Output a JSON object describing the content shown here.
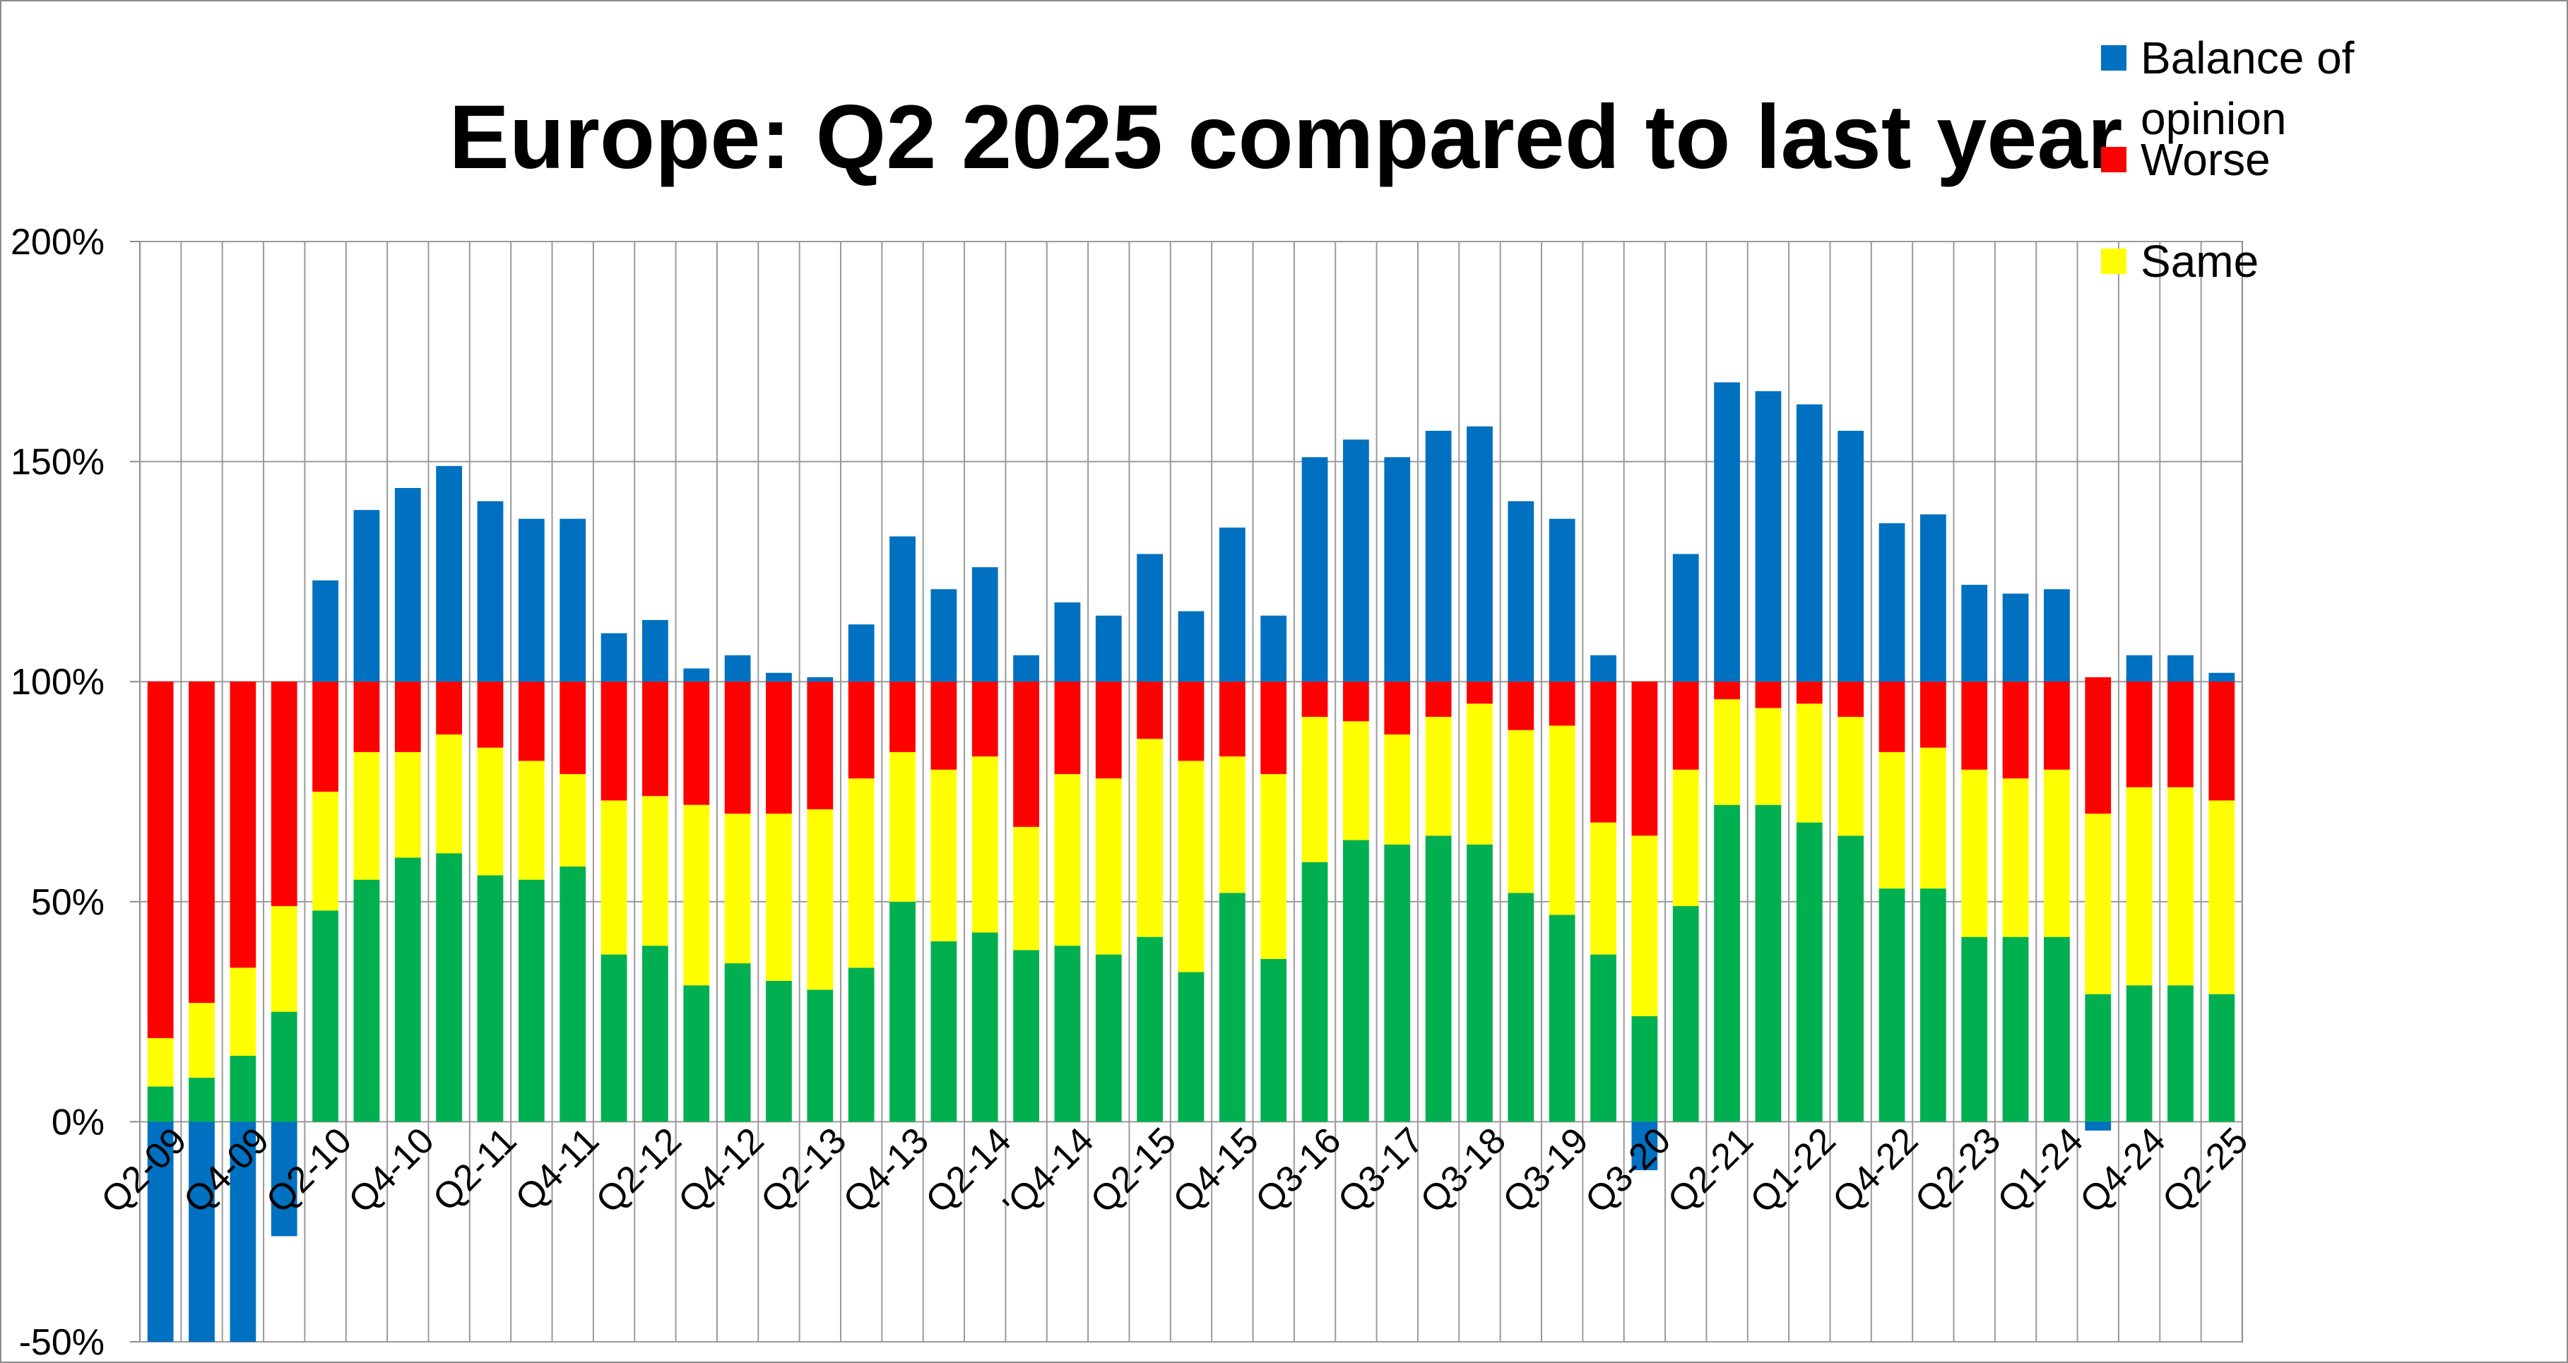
{
  "chart_data": {
    "type": "bar",
    "stacked": true,
    "title": "Europe: Q2 2025 compared to last year",
    "xlabel": "",
    "ylabel": "",
    "ylim": [
      -50,
      200
    ],
    "yticks": [
      "-50%",
      "0%",
      "50%",
      "100%",
      "150%",
      "200%"
    ],
    "grid": true,
    "legend_position": "top-right",
    "colors": {
      "Better": "#00b050",
      "Same": "#ffff00",
      "Worse": "#ff0000",
      "Balance of opinion": "#0070c0"
    },
    "x_tick_labels": [
      {
        "index": 0,
        "label": "Q2-09"
      },
      {
        "index": 2,
        "label": "Q4-09"
      },
      {
        "index": 4,
        "label": "Q2-10"
      },
      {
        "index": 6,
        "label": "Q4-10"
      },
      {
        "index": 8,
        "label": "Q2-11"
      },
      {
        "index": 10,
        "label": "Q4-11"
      },
      {
        "index": 12,
        "label": "Q2-12"
      },
      {
        "index": 14,
        "label": "Q4-12"
      },
      {
        "index": 16,
        "label": "Q2-13"
      },
      {
        "index": 18,
        "label": "Q4-13"
      },
      {
        "index": 20,
        "label": "Q2-14"
      },
      {
        "index": 22,
        "label": "'Q4-14"
      },
      {
        "index": 24,
        "label": "Q2-15"
      },
      {
        "index": 26,
        "label": "Q4-15"
      },
      {
        "index": 28,
        "label": "Q3-16"
      },
      {
        "index": 30,
        "label": "Q3-17"
      },
      {
        "index": 32,
        "label": "Q3-18"
      },
      {
        "index": 34,
        "label": "Q3-19"
      },
      {
        "index": 36,
        "label": "Q3-20"
      },
      {
        "index": 38,
        "label": "Q2-21"
      },
      {
        "index": 40,
        "label": "Q1-22"
      },
      {
        "index": 42,
        "label": "Q4-22"
      },
      {
        "index": 44,
        "label": "Q2-23"
      },
      {
        "index": 46,
        "label": "Q1-24"
      },
      {
        "index": 48,
        "label": "Q4-24"
      },
      {
        "index": 50,
        "label": "Q2-25"
      }
    ],
    "series": [
      {
        "name": "",
        "color": "#00b050",
        "values": [
          8,
          10,
          15,
          25,
          48,
          55,
          60,
          61,
          56,
          55,
          58,
          38,
          40,
          31,
          36,
          32,
          30,
          35,
          50,
          41,
          43,
          39,
          40,
          38,
          42,
          34,
          52,
          37,
          59,
          64,
          63,
          65,
          63,
          52,
          47,
          38,
          24,
          49,
          72,
          72,
          68,
          65,
          53,
          53,
          42,
          42,
          42,
          29,
          31,
          31,
          29
        ]
      },
      {
        "name": "Same",
        "color": "#ffff00",
        "values": [
          11,
          17,
          20,
          24,
          27,
          29,
          24,
          27,
          29,
          27,
          21,
          35,
          34,
          41,
          34,
          38,
          41,
          43,
          34,
          39,
          40,
          28,
          39,
          40,
          45,
          48,
          31,
          42,
          33,
          27,
          25,
          27,
          32,
          37,
          43,
          30,
          41,
          31,
          24,
          22,
          27,
          27,
          31,
          32,
          38,
          36,
          38,
          41,
          45,
          45,
          44
        ]
      },
      {
        "name": "Worse",
        "color": "#ff0000",
        "values": [
          81,
          73,
          65,
          51,
          25,
          16,
          16,
          12,
          15,
          18,
          21,
          27,
          26,
          28,
          30,
          30,
          29,
          22,
          16,
          20,
          17,
          33,
          22,
          22,
          13,
          18,
          17,
          21,
          8,
          9,
          12,
          8,
          5,
          11,
          10,
          32,
          35,
          20,
          4,
          6,
          5,
          8,
          17,
          15,
          20,
          22,
          21,
          31,
          25,
          25,
          28
        ]
      },
      {
        "name": "Balance of opinion",
        "color": "#0070c0",
        "values": [
          -73,
          -63,
          -50,
          -26,
          23,
          39,
          44,
          49,
          41,
          37,
          37,
          11,
          14,
          3,
          6,
          2,
          1,
          13,
          33,
          21,
          26,
          6,
          18,
          15,
          29,
          16,
          35,
          15,
          51,
          55,
          51,
          57,
          58,
          41,
          37,
          6,
          -11,
          29,
          68,
          66,
          63,
          57,
          36,
          38,
          22,
          20,
          21,
          -2,
          6,
          6,
          2
        ]
      }
    ]
  }
}
